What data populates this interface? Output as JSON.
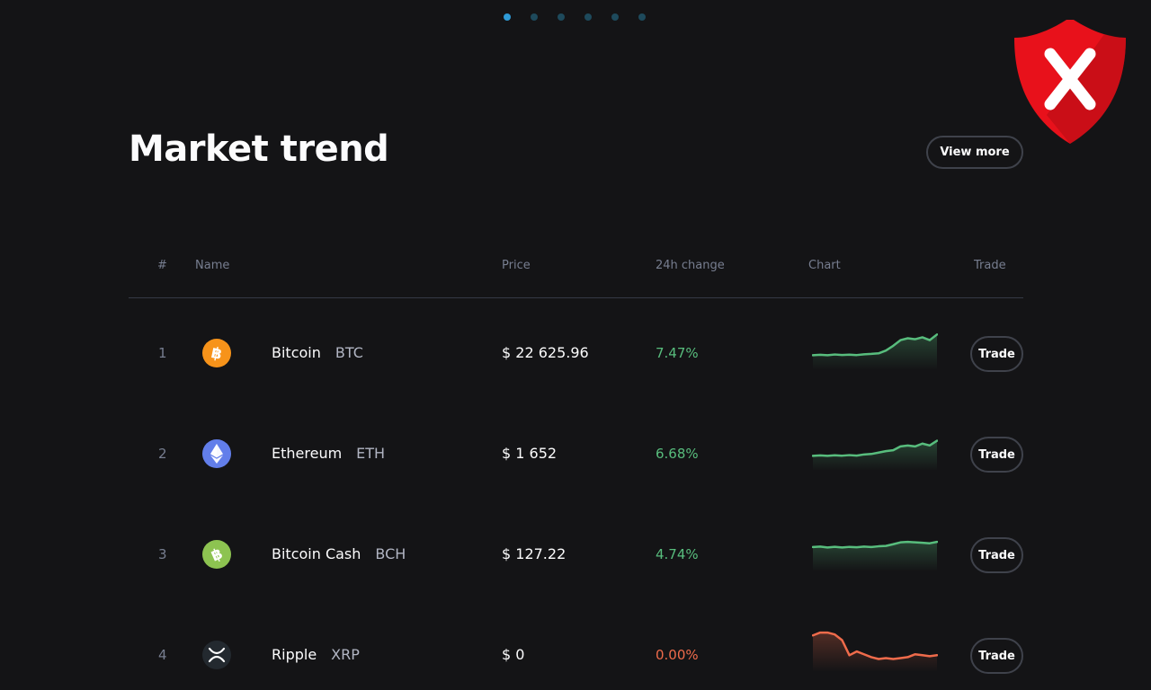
{
  "pagination": {
    "count": 6,
    "active_index": 0
  },
  "header": {
    "title": "Market trend",
    "view_more_label": "View more"
  },
  "table": {
    "columns": {
      "rank": "#",
      "name": "Name",
      "price": "Price",
      "change": "24h change",
      "chart": "Chart",
      "trade": "Trade"
    },
    "rows": [
      {
        "rank": "1",
        "name": "Bitcoin",
        "symbol": "BTC",
        "icon": "bitcoin-icon",
        "price": "$ 22 625.96",
        "change": "7.47%",
        "trend": "up",
        "trade_label": "Trade",
        "spark": [
          12,
          12.5,
          12,
          12.8,
          12.3,
          12.6,
          12.2,
          13,
          13.4,
          14,
          17,
          22,
          28,
          30,
          29,
          31,
          28,
          34
        ]
      },
      {
        "rank": "2",
        "name": "Ethereum",
        "symbol": "ETH",
        "icon": "ethereum-icon",
        "price": "$ 1 652",
        "change": "6.68%",
        "trend": "up",
        "trade_label": "Trade",
        "spark": [
          12,
          12.5,
          12,
          12.6,
          12.2,
          12.8,
          12.3,
          13.5,
          14,
          15.5,
          17,
          18,
          22,
          23,
          22,
          25,
          23,
          28
        ]
      },
      {
        "rank": "3",
        "name": "Bitcoin Cash",
        "symbol": "BCH",
        "icon": "bitcoin-cash-icon",
        "price": "$ 127.22",
        "change": "4.74%",
        "trend": "up",
        "trade_label": "Trade",
        "spark": [
          22,
          22.5,
          21.5,
          22.3,
          21.6,
          22.2,
          21.8,
          22.5,
          22,
          22.8,
          23.2,
          25,
          27,
          27.5,
          27,
          26.5,
          26,
          27.5
        ]
      },
      {
        "rank": "4",
        "name": "Ripple",
        "symbol": "XRP",
        "icon": "ripple-icon",
        "price": "$ 0",
        "change": "0.00%",
        "trend": "flat",
        "trade_label": "Trade",
        "spark": [
          35,
          38,
          38,
          36,
          30,
          14,
          18,
          15,
          12,
          10,
          11,
          10,
          11,
          12,
          15,
          14,
          13,
          14
        ]
      }
    ]
  },
  "colors": {
    "up": "#58bd7d",
    "down": "#ef6b4b",
    "bitcoin": "#f7931a",
    "ethereum": "#627eea",
    "bitcoin_cash": "#8dc351",
    "ripple": "#23292f",
    "shield": "#e8111b"
  },
  "badge": {
    "icon": "shield-x-icon"
  }
}
